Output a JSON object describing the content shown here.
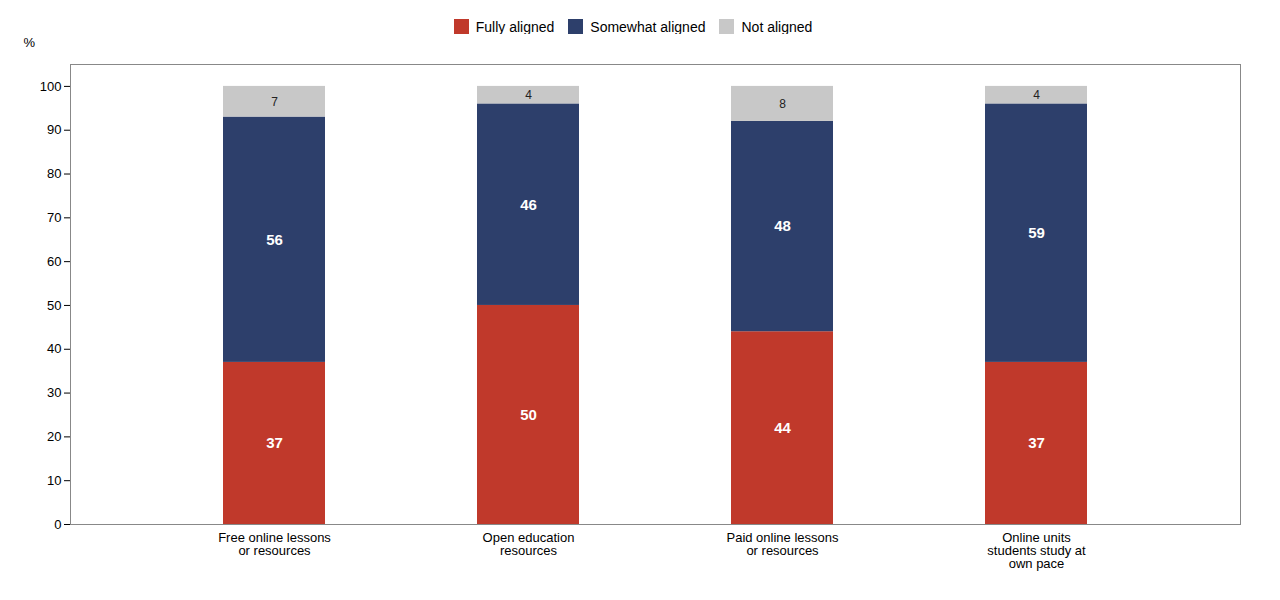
{
  "chart_data": {
    "type": "bar",
    "stacked": true,
    "categories": [
      "Free online lessons\nor resources",
      "Open education\nresources",
      "Paid online lessons\nor resources",
      "Online units\nstudents study at\nown pace"
    ],
    "series": [
      {
        "name": "Fully aligned",
        "color": "#c0392b",
        "values": [
          37,
          50,
          44,
          37
        ]
      },
      {
        "name": "Somewhat aligned",
        "color": "#2d3f6b",
        "values": [
          56,
          46,
          48,
          59
        ]
      },
      {
        "name": "Not aligned",
        "color": "#c8c8c8",
        "values": [
          7,
          4,
          8,
          4
        ]
      }
    ],
    "ylim": [
      0,
      105
    ],
    "yticks": [
      0,
      10,
      20,
      30,
      40,
      50,
      60,
      70,
      80,
      90,
      100
    ],
    "ylabel": "%",
    "data_labels": true,
    "grid": false,
    "legend": "top"
  }
}
